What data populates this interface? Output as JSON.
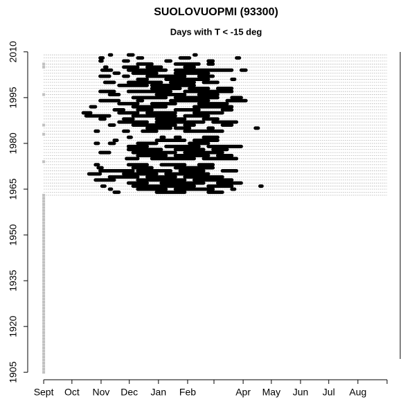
{
  "chart_data": {
    "type": "interval",
    "title": "SUOLOVUOPMI (93300)",
    "subtitle": "Days with T < -15 deg",
    "xlim": [
      -17,
      379
    ],
    "ylim": [
      1903,
      2012
    ],
    "xticks": [
      {
        "value": 0,
        "label": "Sept"
      },
      {
        "value": 30,
        "label": "Oct"
      },
      {
        "value": 61,
        "label": "Nov"
      },
      {
        "value": 91,
        "label": "Dec"
      },
      {
        "value": 122,
        "label": "Jan"
      },
      {
        "value": 153,
        "label": "Feb"
      },
      {
        "value": 181,
        "label": null
      },
      {
        "value": 212,
        "label": "Apr"
      },
      {
        "value": 242,
        "label": "May"
      },
      {
        "value": 273,
        "label": "Jun"
      },
      {
        "value": 303,
        "label": "Jul"
      },
      {
        "value": 334,
        "label": "Aug"
      },
      {
        "value": 365,
        "label": null
      }
    ],
    "yticks": [
      1905,
      1920,
      1935,
      1950,
      1965,
      1980,
      1995,
      2010
    ],
    "color": "#000000",
    "gray_color": "#c0c0c0",
    "line_color": "#b0b0b0",
    "line_years": [
      1963,
      1964,
      1965,
      1966,
      1967,
      1968,
      1969,
      1970,
      1971,
      1972,
      1973,
      1974,
      1975,
      1976,
      1977,
      1978,
      1979,
      1980,
      1981,
      1982,
      1983,
      1984,
      1985,
      1986,
      1987,
      1988,
      1989,
      1990,
      1991,
      1992,
      1993,
      1994,
      1995,
      1996,
      1997,
      1998,
      1999,
      2000,
      2001,
      2002,
      2003,
      2004,
      2005,
      2006,
      2007,
      2008,
      2009
    ],
    "gray_years": [
      1905,
      1906,
      1907,
      1908,
      1909,
      1910,
      1911,
      1912,
      1913,
      1914,
      1915,
      1916,
      1917,
      1918,
      1919,
      1920,
      1921,
      1922,
      1923,
      1924,
      1925,
      1926,
      1927,
      1928,
      1929,
      1930,
      1931,
      1932,
      1933,
      1934,
      1935,
      1936,
      1937,
      1938,
      1939,
      1940,
      1941,
      1942,
      1943,
      1944,
      1945,
      1946,
      1947,
      1948,
      1949,
      1950,
      1951,
      1952,
      1953,
      1954,
      1955,
      1956,
      1957,
      1958,
      1959,
      1960,
      1961,
      1962,
      1963,
      1974,
      1983,
      1986,
      1996,
      2005,
      2006
    ],
    "periods": [
      [
        1964,
        75,
        80
      ],
      [
        1964,
        120,
        150
      ],
      [
        1964,
        175,
        190
      ],
      [
        1965,
        70,
        72
      ],
      [
        1965,
        100,
        130
      ],
      [
        1965,
        140,
        180
      ],
      [
        1965,
        200,
        203
      ],
      [
        1966,
        62,
        65
      ],
      [
        1966,
        95,
        160
      ],
      [
        1966,
        175,
        200
      ],
      [
        1966,
        230,
        232
      ],
      [
        1967,
        90,
        110
      ],
      [
        1967,
        125,
        170
      ],
      [
        1967,
        185,
        210
      ],
      [
        1968,
        55,
        75
      ],
      [
        1968,
        100,
        150
      ],
      [
        1968,
        160,
        200
      ],
      [
        1969,
        70,
        100
      ],
      [
        1969,
        110,
        140
      ],
      [
        1969,
        150,
        190
      ],
      [
        1970,
        48,
        60
      ],
      [
        1970,
        85,
        120
      ],
      [
        1970,
        130,
        175
      ],
      [
        1971,
        60,
        95
      ],
      [
        1971,
        100,
        135
      ],
      [
        1971,
        145,
        170
      ],
      [
        1971,
        190,
        205
      ],
      [
        1972,
        58,
        62
      ],
      [
        1972,
        95,
        115
      ],
      [
        1972,
        140,
        180
      ],
      [
        1973,
        55,
        58
      ],
      [
        1973,
        90,
        110
      ],
      [
        1973,
        125,
        150
      ],
      [
        1973,
        165,
        180
      ],
      [
        1975,
        88,
        100
      ],
      [
        1975,
        115,
        160
      ],
      [
        1975,
        170,
        205
      ],
      [
        1976,
        100,
        130
      ],
      [
        1976,
        140,
        175
      ],
      [
        1976,
        185,
        200
      ],
      [
        1977,
        60,
        70
      ],
      [
        1977,
        95,
        140
      ],
      [
        1977,
        150,
        190
      ],
      [
        1978,
        90,
        125
      ],
      [
        1978,
        140,
        170
      ],
      [
        1978,
        180,
        195
      ],
      [
        1979,
        90,
        110
      ],
      [
        1979,
        130,
        165
      ],
      [
        1979,
        175,
        210
      ],
      [
        1980,
        55,
        58
      ],
      [
        1980,
        70,
        75
      ],
      [
        1980,
        100,
        120
      ],
      [
        1980,
        155,
        175
      ],
      [
        1981,
        75,
        78
      ],
      [
        1981,
        120,
        150
      ],
      [
        1981,
        160,
        185
      ],
      [
        1982,
        90,
        93
      ],
      [
        1982,
        125,
        128
      ],
      [
        1982,
        140,
        145
      ],
      [
        1982,
        170,
        185
      ],
      [
        1984,
        55,
        58
      ],
      [
        1984,
        85,
        90
      ],
      [
        1984,
        105,
        120
      ],
      [
        1984,
        150,
        190
      ],
      [
        1985,
        110,
        135
      ],
      [
        1985,
        140,
        155
      ],
      [
        1985,
        175,
        180
      ],
      [
        1985,
        225,
        228
      ],
      [
        1986,
        70,
        75
      ],
      [
        1986,
        95,
        140
      ],
      [
        1986,
        150,
        160
      ],
      [
        1986,
        190,
        200
      ],
      [
        1987,
        80,
        110
      ],
      [
        1987,
        120,
        170
      ],
      [
        1987,
        180,
        205
      ],
      [
        1988,
        60,
        65
      ],
      [
        1988,
        85,
        95
      ],
      [
        1988,
        120,
        150
      ],
      [
        1988,
        170,
        185
      ],
      [
        1989,
        45,
        70
      ],
      [
        1989,
        95,
        140
      ],
      [
        1989,
        150,
        175
      ],
      [
        1990,
        42,
        50
      ],
      [
        1990,
        80,
        100
      ],
      [
        1990,
        110,
        140
      ],
      [
        1990,
        160,
        190
      ],
      [
        1991,
        75,
        85
      ],
      [
        1991,
        100,
        115
      ],
      [
        1991,
        140,
        165
      ],
      [
        1991,
        190,
        200
      ],
      [
        1992,
        50,
        55
      ],
      [
        1992,
        95,
        130
      ],
      [
        1992,
        160,
        200
      ],
      [
        1993,
        80,
        100
      ],
      [
        1993,
        115,
        140
      ],
      [
        1993,
        165,
        195
      ],
      [
        1994,
        60,
        80
      ],
      [
        1994,
        100,
        105
      ],
      [
        1994,
        135,
        175
      ],
      [
        1994,
        195,
        215
      ],
      [
        1995,
        95,
        130
      ],
      [
        1995,
        140,
        185
      ],
      [
        1995,
        200,
        210
      ],
      [
        1996,
        70,
        80
      ],
      [
        1996,
        120,
        150
      ],
      [
        1996,
        165,
        185
      ],
      [
        1997,
        60,
        75
      ],
      [
        1997,
        90,
        135
      ],
      [
        1997,
        150,
        200
      ],
      [
        1998,
        115,
        145
      ],
      [
        1998,
        155,
        175
      ],
      [
        1998,
        185,
        200
      ],
      [
        1999,
        80,
        110
      ],
      [
        1999,
        115,
        160
      ],
      [
        2000,
        65,
        75
      ],
      [
        2000,
        90,
        125
      ],
      [
        2000,
        135,
        160
      ],
      [
        2000,
        170,
        185
      ],
      [
        2001,
        100,
        110
      ],
      [
        2001,
        130,
        175
      ],
      [
        2001,
        200,
        203
      ],
      [
        2002,
        60,
        70
      ],
      [
        2002,
        85,
        90
      ],
      [
        2002,
        110,
        150
      ],
      [
        2002,
        165,
        180
      ],
      [
        2003,
        75,
        80
      ],
      [
        2003,
        95,
        120
      ],
      [
        2003,
        140,
        175
      ],
      [
        2004,
        62,
        72
      ],
      [
        2004,
        90,
        130
      ],
      [
        2004,
        140,
        200
      ],
      [
        2004,
        210,
        215
      ],
      [
        2005,
        65,
        67
      ],
      [
        2005,
        85,
        100
      ],
      [
        2005,
        110,
        125
      ],
      [
        2005,
        150,
        160
      ],
      [
        2006,
        100,
        115
      ],
      [
        2006,
        140,
        165
      ],
      [
        2006,
        175,
        180
      ],
      [
        2007,
        60,
        62
      ],
      [
        2007,
        85,
        90
      ],
      [
        2007,
        130,
        135
      ],
      [
        2007,
        175,
        180
      ],
      [
        2008,
        60,
        63
      ],
      [
        2008,
        100,
        105
      ],
      [
        2008,
        145,
        155
      ],
      [
        2008,
        205,
        208
      ],
      [
        2009,
        70,
        72
      ],
      [
        2009,
        90,
        95
      ],
      [
        2009,
        160,
        162
      ]
    ]
  }
}
